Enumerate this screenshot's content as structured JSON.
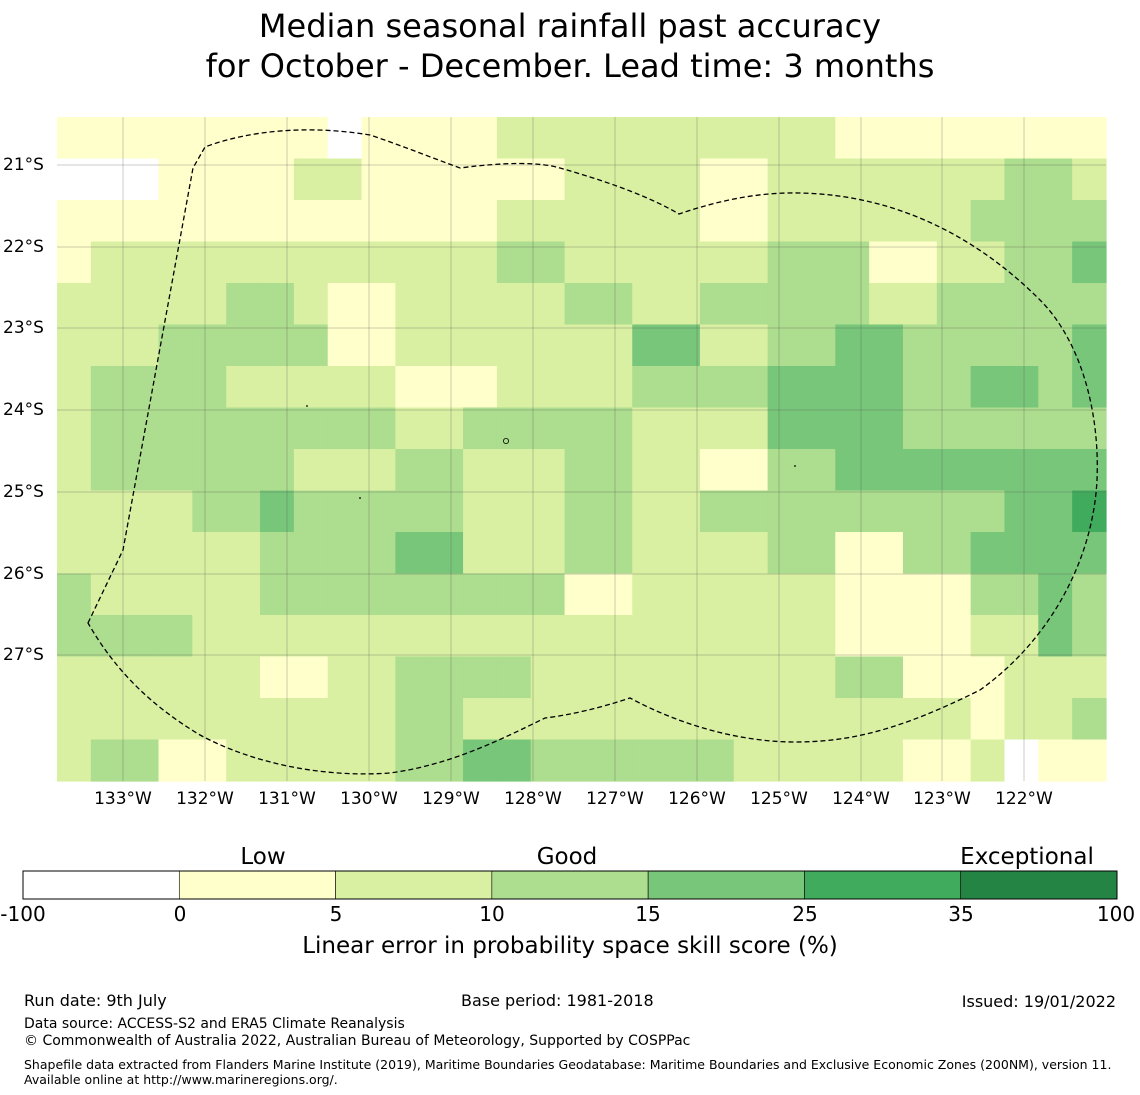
{
  "title": {
    "line1": "Median seasonal rainfall past accuracy",
    "line2": "for October - December. Lead time: 3 months"
  },
  "map": {
    "latitude_labels": [
      "21°S",
      "22°S",
      "23°S",
      "24°S",
      "25°S",
      "26°S",
      "27°S"
    ],
    "longitude_labels": [
      "133°W",
      "132°W",
      "131°W",
      "130°W",
      "129°W",
      "128°W",
      "127°W",
      "126°W",
      "125°W",
      "124°W",
      "123°W",
      "122°W"
    ],
    "grid_lines": true,
    "boundary_style": "dashed",
    "grid_class_values": {
      "note": "skill class index per cell: 0 = -100..0, 1 = 0..5, 2 = 5..10, 3 = 10..15, 4 = 15..25, 5 = 25..35, 6 = 35..100",
      "rows": [
        [
          1,
          1,
          1,
          1,
          1,
          1,
          1,
          1,
          0,
          1,
          1,
          1,
          1,
          2,
          2,
          2,
          2,
          2,
          2,
          2,
          2,
          2,
          2,
          1,
          1,
          1,
          1,
          1,
          1,
          1,
          1
        ],
        [
          0,
          0,
          0,
          1,
          1,
          1,
          1,
          2,
          2,
          1,
          1,
          1,
          1,
          1,
          1,
          2,
          2,
          2,
          2,
          1,
          1,
          2,
          2,
          2,
          2,
          2,
          2,
          2,
          3,
          3,
          2
        ],
        [
          1,
          1,
          1,
          1,
          1,
          1,
          1,
          1,
          1,
          1,
          1,
          1,
          1,
          2,
          2,
          2,
          2,
          2,
          2,
          1,
          1,
          2,
          2,
          2,
          2,
          2,
          2,
          3,
          3,
          3,
          3
        ],
        [
          1,
          2,
          2,
          2,
          2,
          2,
          2,
          2,
          2,
          2,
          2,
          2,
          2,
          3,
          3,
          2,
          2,
          2,
          2,
          2,
          2,
          3,
          3,
          3,
          1,
          1,
          2,
          2,
          3,
          3,
          4
        ],
        [
          2,
          2,
          2,
          2,
          2,
          3,
          3,
          2,
          1,
          1,
          2,
          2,
          2,
          2,
          2,
          3,
          3,
          2,
          2,
          3,
          3,
          3,
          3,
          3,
          2,
          2,
          3,
          3,
          3,
          3,
          3
        ],
        [
          2,
          2,
          2,
          3,
          3,
          3,
          3,
          3,
          1,
          1,
          2,
          2,
          2,
          2,
          2,
          2,
          2,
          4,
          4,
          2,
          2,
          3,
          3,
          4,
          4,
          3,
          3,
          3,
          3,
          3,
          4
        ],
        [
          2,
          3,
          3,
          3,
          3,
          2,
          2,
          2,
          2,
          2,
          1,
          1,
          1,
          2,
          2,
          2,
          2,
          3,
          3,
          3,
          3,
          4,
          4,
          4,
          4,
          3,
          3,
          4,
          4,
          3,
          4
        ],
        [
          2,
          3,
          3,
          3,
          3,
          3,
          3,
          3,
          3,
          3,
          2,
          2,
          3,
          3,
          3,
          3,
          3,
          2,
          2,
          2,
          2,
          4,
          4,
          4,
          4,
          3,
          3,
          3,
          3,
          3,
          3
        ],
        [
          2,
          3,
          3,
          3,
          3,
          3,
          3,
          2,
          2,
          2,
          3,
          3,
          2,
          2,
          2,
          3,
          3,
          2,
          2,
          1,
          1,
          3,
          3,
          4,
          4,
          4,
          4,
          4,
          4,
          4,
          4
        ],
        [
          2,
          2,
          2,
          2,
          3,
          3,
          4,
          3,
          3,
          3,
          3,
          3,
          2,
          2,
          2,
          3,
          3,
          2,
          2,
          3,
          3,
          3,
          3,
          3,
          3,
          3,
          3,
          3,
          4,
          4,
          5
        ],
        [
          2,
          2,
          2,
          2,
          2,
          2,
          3,
          3,
          3,
          3,
          4,
          4,
          2,
          2,
          2,
          3,
          3,
          2,
          2,
          2,
          2,
          3,
          3,
          1,
          1,
          3,
          3,
          4,
          4,
          4,
          4
        ],
        [
          3,
          2,
          2,
          2,
          2,
          2,
          3,
          3,
          3,
          3,
          3,
          3,
          3,
          3,
          3,
          1,
          1,
          2,
          2,
          2,
          2,
          2,
          2,
          1,
          1,
          1,
          1,
          3,
          3,
          4,
          3
        ],
        [
          3,
          3,
          3,
          3,
          2,
          2,
          2,
          2,
          2,
          2,
          2,
          2,
          2,
          2,
          2,
          2,
          2,
          2,
          2,
          2,
          2,
          2,
          2,
          1,
          1,
          1,
          1,
          2,
          2,
          4,
          3
        ],
        [
          2,
          2,
          2,
          2,
          2,
          2,
          1,
          1,
          2,
          2,
          3,
          3,
          3,
          3,
          2,
          2,
          2,
          2,
          2,
          2,
          2,
          2,
          2,
          3,
          3,
          1,
          1,
          1,
          2,
          2,
          2
        ],
        [
          2,
          2,
          2,
          2,
          2,
          2,
          2,
          2,
          2,
          2,
          3,
          3,
          2,
          2,
          2,
          2,
          2,
          2,
          2,
          2,
          2,
          2,
          2,
          2,
          2,
          2,
          2,
          1,
          2,
          2,
          3
        ],
        [
          2,
          3,
          3,
          1,
          1,
          2,
          2,
          2,
          2,
          2,
          3,
          3,
          4,
          4,
          3,
          3,
          3,
          3,
          3,
          3,
          2,
          2,
          2,
          2,
          2,
          1,
          1,
          2,
          0,
          1,
          1
        ]
      ]
    }
  },
  "colorbar": {
    "categories": [
      "Low",
      "Good",
      "Exceptional"
    ],
    "ticks": [
      "-100",
      "0",
      "5",
      "10",
      "15",
      "25",
      "35",
      "100"
    ],
    "colors": [
      "#ffffff",
      "#ffffcc",
      "#d9f0a3",
      "#addd8e",
      "#78c679",
      "#41ab5d",
      "#238443"
    ],
    "label": "Linear error in probability space skill score (%)"
  },
  "footer": {
    "run_date": "Run date: 9th July",
    "base_period": "Base period: 1981-2018",
    "issued": "Issued: 19/01/2022",
    "data_source": "Data source: ACCESS-S2 and ERA5 Climate Reanalysis",
    "copyright": "© Commonwealth of Australia 2022, Australian Bureau of Meteorology, Supported by COSPPac",
    "shapefile": "Shapefile data extracted from Flanders Marine Institute (2019), Maritime Boundaries Geodatabase: Maritime Boundaries and Exclusive Economic Zones (200NM), version 11. Available online at http://www.marineregions.org/."
  }
}
